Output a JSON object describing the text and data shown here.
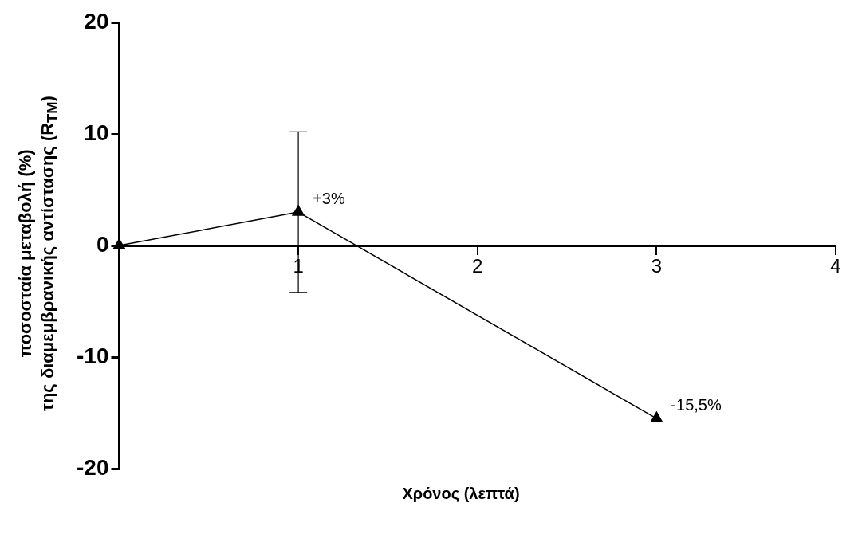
{
  "chart_data": {
    "type": "line",
    "xlabel": "Χρόνος (λεπτά)",
    "ylabel": "ποσοσταία μεταβολή (%)\nτης διαμεμβρανικής αντίστασης (R$_{TM}$)",
    "x": [
      0,
      1,
      3
    ],
    "values": [
      0,
      3,
      -15.5
    ],
    "errors": [
      null,
      7.2,
      null
    ],
    "value_labels": [
      null,
      "+3%",
      "-15,5%"
    ],
    "color": "#000000",
    "xlim": [
      0,
      4
    ],
    "xticks": [
      {
        "value": 0,
        "label": null
      },
      1,
      2,
      3,
      4
    ],
    "ylim": [
      -20,
      20
    ],
    "yticks": [
      -20,
      -10,
      0,
      10,
      20
    ],
    "grid": false,
    "legend": false,
    "marker": "triangle",
    "line_style": "solid"
  }
}
